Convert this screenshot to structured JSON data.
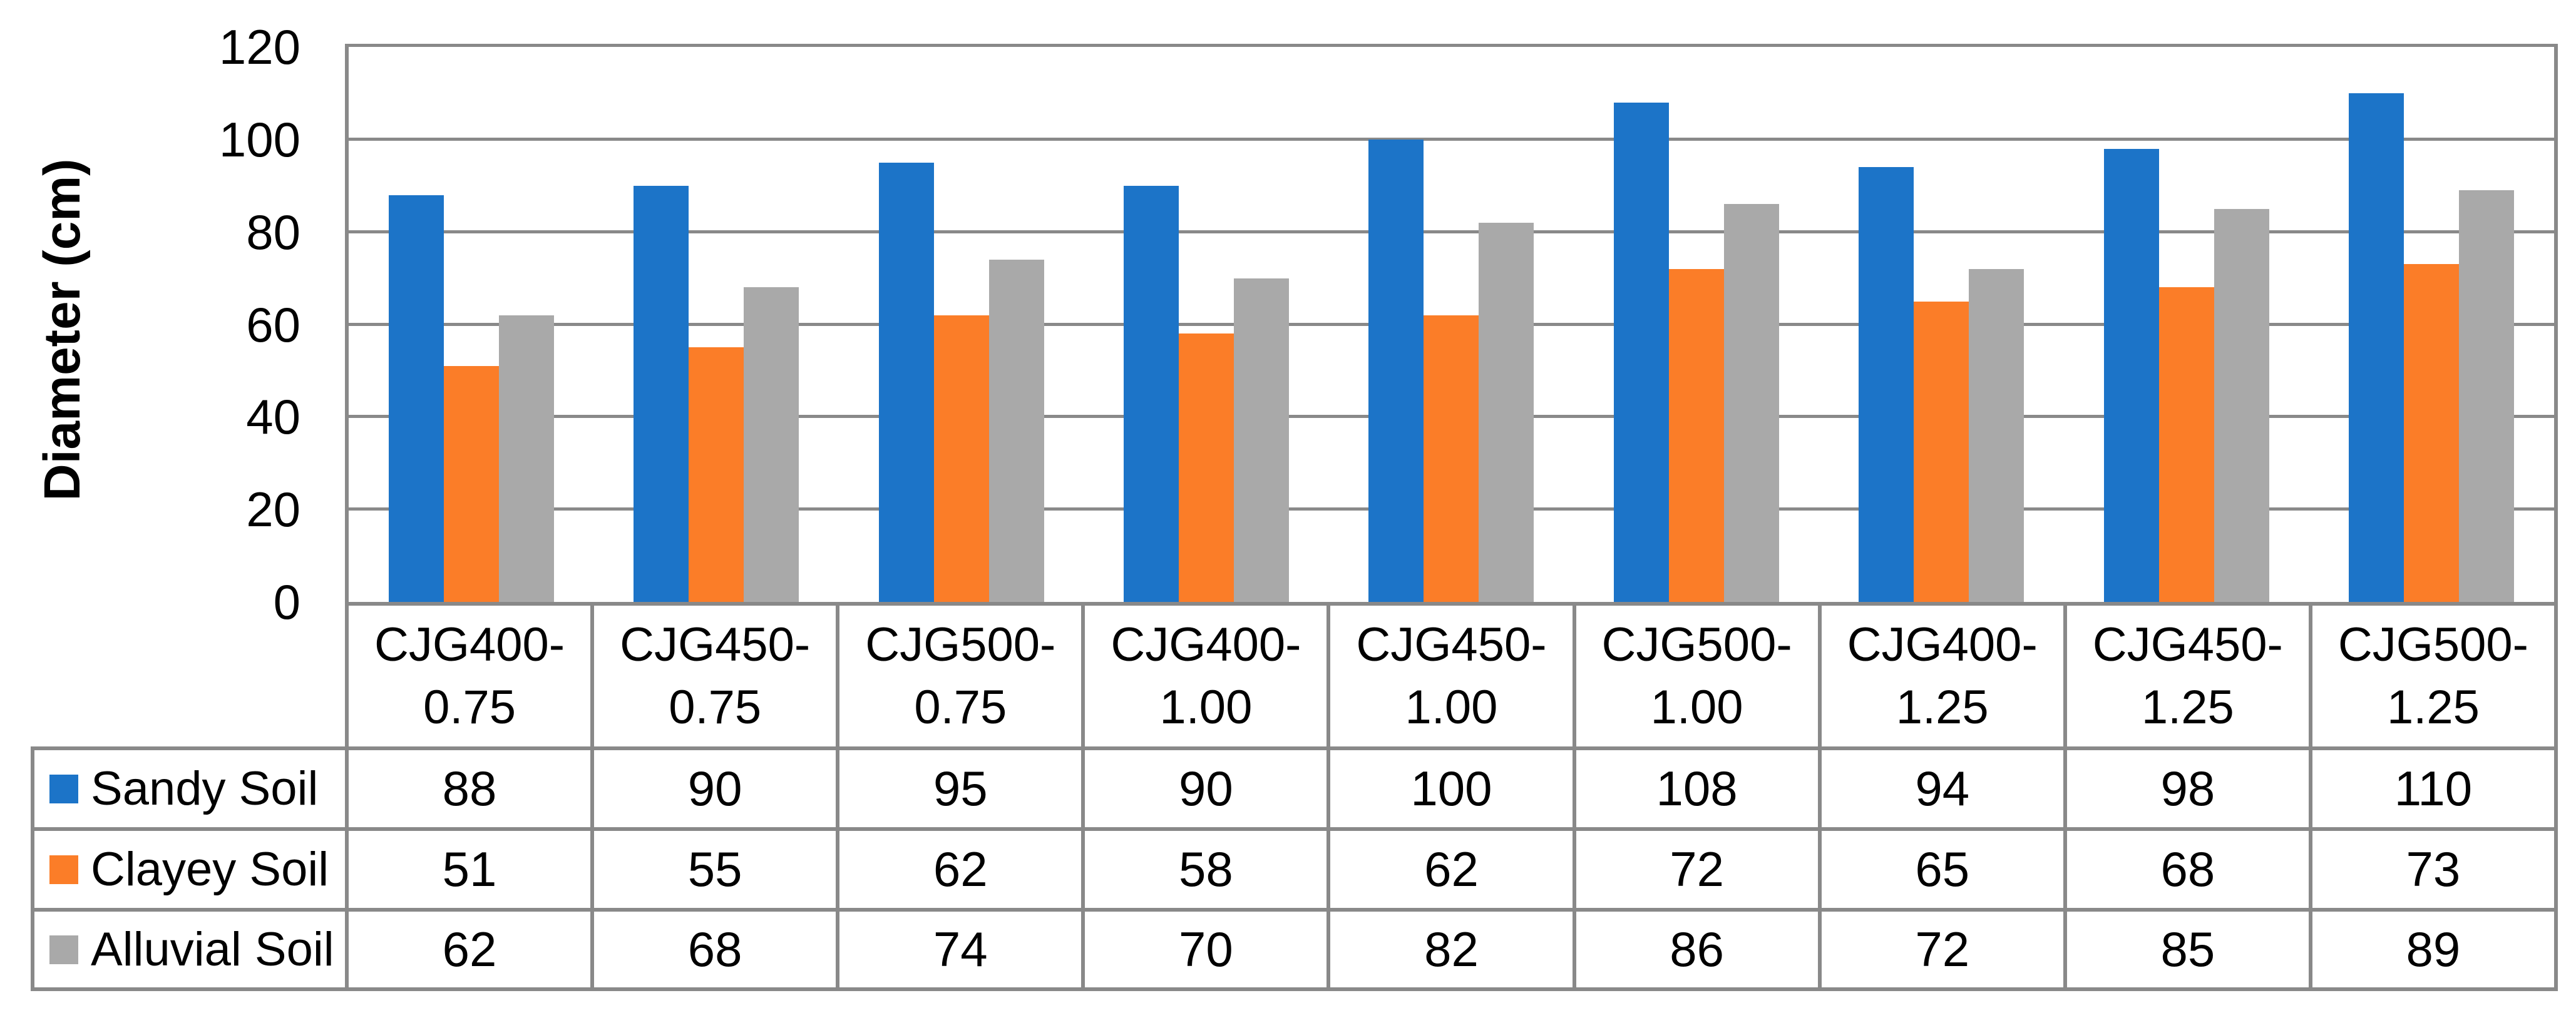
{
  "colors": {
    "sandy_soil": "#1C74C8",
    "clayey_soil": "#FB7D28",
    "alluvial_soil": "#A9A9A9",
    "grid_line": "#898989",
    "text": "#000000",
    "background": "#FFFFFF"
  },
  "chart_data": {
    "type": "bar",
    "title": "",
    "xlabel": "",
    "ylabel": "Diameter (cm)",
    "ylim": [
      0,
      120
    ],
    "ytick_step": 20,
    "yticks": [
      0,
      20,
      40,
      60,
      80,
      100,
      120
    ],
    "grid": true,
    "legend_position": "data-table-left",
    "categories": [
      "CJG400-0.75",
      "CJG450-0.75",
      "CJG500-0.75",
      "CJG400-1.00",
      "CJG450-1.00",
      "CJG500-1.00",
      "CJG400-1.25",
      "CJG450-1.25",
      "CJG500-1.25"
    ],
    "category_lines": [
      [
        "CJG400-",
        "0.75"
      ],
      [
        "CJG450-",
        "0.75"
      ],
      [
        "CJG500-",
        "0.75"
      ],
      [
        "CJG400-",
        "1.00"
      ],
      [
        "CJG450-",
        "1.00"
      ],
      [
        "CJG500-",
        "1.00"
      ],
      [
        "CJG400-",
        "1.25"
      ],
      [
        "CJG450-",
        "1.25"
      ],
      [
        "CJG500-",
        "1.25"
      ]
    ],
    "series": [
      {
        "name": "Sandy Soil",
        "color": "#1C74C8",
        "values": [
          88,
          90,
          95,
          90,
          100,
          108,
          94,
          98,
          110
        ]
      },
      {
        "name": "Clayey Soil",
        "color": "#FB7D28",
        "values": [
          51,
          55,
          62,
          58,
          62,
          72,
          65,
          68,
          73
        ]
      },
      {
        "name": "Alluvial Soil",
        "color": "#A9A9A9",
        "values": [
          62,
          68,
          74,
          70,
          82,
          86,
          72,
          85,
          89
        ]
      }
    ]
  }
}
